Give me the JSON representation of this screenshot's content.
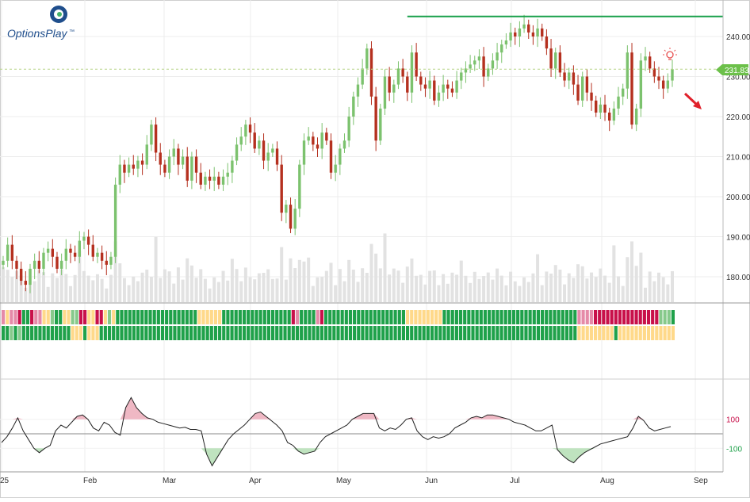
{
  "brand": {
    "name": "OptionsPlay",
    "mark": "™"
  },
  "colors": {
    "up": "#7cc26e",
    "down": "#b5301f",
    "volume": "#e2e2e2",
    "resistance": "#18a04a",
    "price_tag": "#6cc04a",
    "grid": "#ececec",
    "cci_line": "#222222",
    "cci_pos_fill": "#efb8c4",
    "cci_neg_fill": "#bfe3bf",
    "signal_bright_green": "#1fa14a",
    "signal_light_green": "#86c98b",
    "signal_yellow": "#ffd98a",
    "signal_pink": "#e58aa8",
    "signal_red": "#c8104a",
    "arrow": "#e0202a",
    "bulb": "#e85050"
  },
  "icons": {
    "alert": "lightbulb-icon",
    "forecast": "down-arrow-icon",
    "logo": "optionsplay-logo-icon"
  },
  "chart_data": [
    {
      "type": "candlestick",
      "title": "",
      "x_ticks": [
        "25",
        "Feb",
        "Mar",
        "Apr",
        "May",
        "Jun",
        "Jul",
        "Aug",
        "Sep"
      ],
      "y_ticks": [
        "240.00",
        "230.00",
        "220.00",
        "210.00",
        "200.00",
        "190.00",
        "180.00"
      ],
      "ylim": [
        173.5,
        246
      ],
      "last_price": "231.83",
      "resistance": 245,
      "trend_forecast": "down",
      "closes": [
        184,
        188,
        184,
        182,
        179,
        178,
        182,
        184,
        182,
        186,
        187,
        185,
        182,
        184,
        187,
        186,
        185,
        189,
        190,
        188,
        185,
        186,
        184,
        183,
        185,
        203,
        208,
        206,
        208,
        207,
        209,
        208,
        213,
        218,
        211,
        208,
        206,
        210,
        212,
        208,
        210,
        204,
        210,
        206,
        203,
        205,
        204,
        205,
        203,
        205,
        206,
        209,
        213,
        215,
        218,
        216,
        212,
        214,
        209,
        211,
        212,
        208,
        196,
        198,
        192,
        197,
        208,
        214,
        215,
        213,
        212,
        216,
        214,
        206,
        208,
        212,
        214,
        220,
        225,
        228,
        232,
        237,
        225,
        214,
        222,
        230,
        226,
        228,
        232,
        230,
        226,
        236,
        230,
        228,
        227,
        229,
        224,
        226,
        228,
        227,
        226,
        229,
        231,
        232,
        233,
        234,
        235,
        230,
        232,
        234,
        236,
        238,
        239,
        241,
        240,
        242,
        243,
        241,
        240,
        242,
        240,
        237,
        232,
        236,
        231,
        229,
        231,
        228,
        224,
        230,
        226,
        224,
        221,
        223,
        221,
        219,
        222,
        225,
        227,
        236,
        218,
        222,
        234,
        235,
        232,
        230,
        229,
        227,
        229,
        231.83
      ],
      "volume_scale": 200
    },
    {
      "type": "heatmap",
      "rows": 2,
      "legend": {
        "0": "bright_green",
        "1": "light_green",
        "2": "yellow",
        "3": "pink",
        "4": "red"
      },
      "row_codes": [
        "323340043322100221144224421200000000000000000000222222000000000000000004300003400000000000000000000222222222000000000000000000000000000000000333344444444444444441110",
        "001010000000000002220222000000000000000000000000000000000000000000000000000000000000000000000000000000000000000000000000000000000000000000000222222222022222222222222"
      ]
    },
    {
      "type": "line",
      "y_ticks": [
        "100",
        "-100"
      ],
      "series_colors": {
        "positive": "cci_pos_fill",
        "negative": "cci_neg_fill"
      },
      "values": [
        -60,
        -20,
        40,
        110,
        20,
        -40,
        -100,
        -130,
        -100,
        -80,
        20,
        60,
        40,
        80,
        120,
        130,
        100,
        40,
        20,
        80,
        60,
        10,
        -10,
        180,
        250,
        180,
        140,
        110,
        100,
        80,
        70,
        60,
        50,
        40,
        45,
        30,
        30,
        20,
        -140,
        -220,
        -160,
        -100,
        -40,
        0,
        30,
        60,
        100,
        140,
        150,
        120,
        90,
        60,
        20,
        -60,
        -80,
        -120,
        -140,
        -130,
        -120,
        -60,
        -20,
        0,
        20,
        40,
        60,
        100,
        120,
        140,
        140,
        140,
        40,
        20,
        40,
        30,
        60,
        100,
        110,
        20,
        -20,
        -40,
        -20,
        -30,
        -20,
        0,
        40,
        60,
        80,
        110,
        120,
        110,
        130,
        130,
        120,
        110,
        100,
        80,
        70,
        60,
        40,
        20,
        20,
        40,
        60,
        -110,
        -150,
        -180,
        -200,
        -160,
        -130,
        -110,
        -90,
        -70,
        -60,
        -50,
        -40,
        -30,
        -20,
        40,
        120,
        90,
        40,
        20,
        30,
        40,
        50
      ]
    }
  ]
}
